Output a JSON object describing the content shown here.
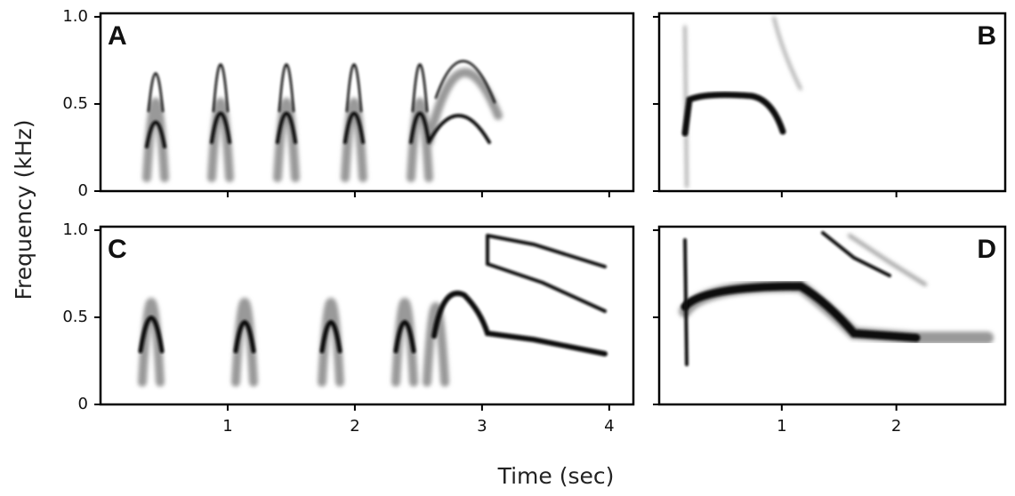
{
  "ylabel": "Frequency (kHz)",
  "xlabel": "Time (sec)",
  "chart_data": [
    {
      "type": "spectrogram",
      "title": "A",
      "ylim": [
        0,
        1.02
      ],
      "yticks": [
        0,
        0.5,
        {
          "value": 1,
          "label": "1.0"
        }
      ]
    },
    {
      "type": "spectrogram",
      "title": "B"
    },
    {
      "type": "spectrogram",
      "title": "C",
      "ylim": [
        0,
        1.02
      ],
      "yticks": [
        0,
        0.5,
        {
          "value": 1,
          "label": "1.0"
        }
      ],
      "xlim": [
        0,
        4.19
      ],
      "xticks": [
        1,
        2,
        3,
        4
      ]
    },
    {
      "type": "spectrogram",
      "title": "D",
      "xlim": [
        -0.07,
        2.95
      ],
      "xticks": [
        1,
        2
      ]
    }
  ]
}
